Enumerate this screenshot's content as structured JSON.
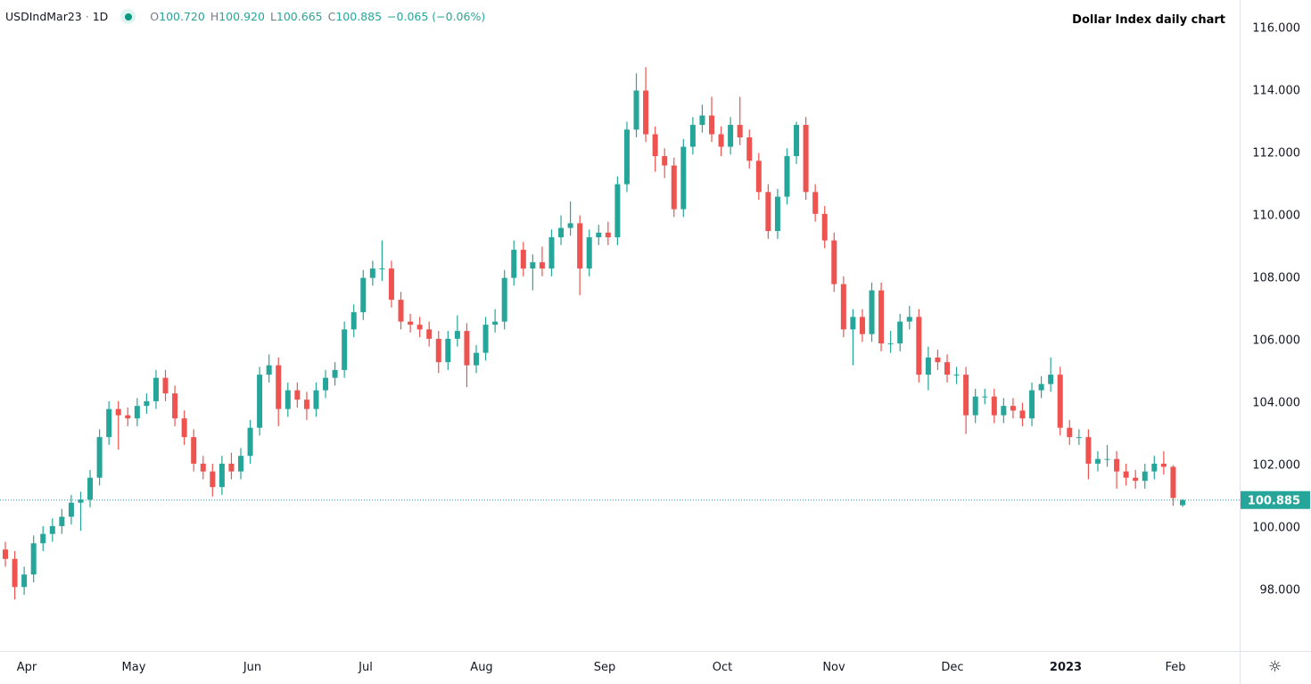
{
  "header": {
    "symbol": "USDIndMar23",
    "separator": "·",
    "interval": "1D",
    "open_label": "O",
    "open": "100.720",
    "high_label": "H",
    "high": "100.920",
    "low_label": "L",
    "low": "100.665",
    "close_label": "C",
    "close": "100.885",
    "change": "−0.065 (−0.06%)"
  },
  "annotation": "Dollar Index daily chart",
  "settings_icon": "gear-icon",
  "colors": {
    "up": "#26a69a",
    "down": "#ef5350",
    "price_line": "#26a69a",
    "axis_border": "#e0e3eb"
  },
  "chart_data": {
    "type": "candlestick",
    "title": "",
    "ylim": [
      96.05,
      116.9
    ],
    "y_ticks": [
      "98.000",
      "100.000",
      "102.000",
      "104.000",
      "106.000",
      "108.000",
      "110.000",
      "112.000",
      "114.000",
      "116.000"
    ],
    "x_ticks": [
      {
        "label": "Apr",
        "bold": false
      },
      {
        "label": "May",
        "bold": false
      },
      {
        "label": "Jun",
        "bold": false
      },
      {
        "label": "Jul",
        "bold": false
      },
      {
        "label": "Aug",
        "bold": false
      },
      {
        "label": "Sep",
        "bold": false
      },
      {
        "label": "Oct",
        "bold": false
      },
      {
        "label": "Nov",
        "bold": false
      },
      {
        "label": "Dec",
        "bold": false
      },
      {
        "label": "2023",
        "bold": true
      },
      {
        "label": "Feb",
        "bold": false
      }
    ],
    "grid": false,
    "last_price": 100.885,
    "last_price_label": "100.885",
    "columns": [
      "open",
      "high",
      "low",
      "close"
    ],
    "candles": [
      [
        99.3,
        99.55,
        98.75,
        99.0
      ],
      [
        99.0,
        99.25,
        97.7,
        98.1
      ],
      [
        98.1,
        98.75,
        97.85,
        98.5
      ],
      [
        98.5,
        99.75,
        98.25,
        99.5
      ],
      [
        99.5,
        100.05,
        99.25,
        99.8
      ],
      [
        99.8,
        100.3,
        99.55,
        100.05
      ],
      [
        100.05,
        100.6,
        99.8,
        100.35
      ],
      [
        100.35,
        101.05,
        100.1,
        100.8
      ],
      [
        100.8,
        101.15,
        99.9,
        100.9
      ],
      [
        100.9,
        101.85,
        100.65,
        101.6
      ],
      [
        101.6,
        103.15,
        101.35,
        102.9
      ],
      [
        102.9,
        104.05,
        102.65,
        103.8
      ],
      [
        103.8,
        104.05,
        102.5,
        103.6
      ],
      [
        103.6,
        103.85,
        103.25,
        103.5
      ],
      [
        103.5,
        104.15,
        103.25,
        103.9
      ],
      [
        103.9,
        104.3,
        103.65,
        104.05
      ],
      [
        104.05,
        105.05,
        103.8,
        104.8
      ],
      [
        104.8,
        105.05,
        104.05,
        104.3
      ],
      [
        104.3,
        104.55,
        103.25,
        103.5
      ],
      [
        103.5,
        103.75,
        102.65,
        102.9
      ],
      [
        102.9,
        103.15,
        101.8,
        102.05
      ],
      [
        102.05,
        102.3,
        101.55,
        101.8
      ],
      [
        101.8,
        102.05,
        101.0,
        101.3
      ],
      [
        101.3,
        102.3,
        101.05,
        102.05
      ],
      [
        102.05,
        102.4,
        101.55,
        101.8
      ],
      [
        101.8,
        102.55,
        101.55,
        102.3
      ],
      [
        102.3,
        103.45,
        102.05,
        103.2
      ],
      [
        103.2,
        105.15,
        102.95,
        104.9
      ],
      [
        104.9,
        105.55,
        104.65,
        105.2
      ],
      [
        105.2,
        105.45,
        103.25,
        103.8
      ],
      [
        103.8,
        104.65,
        103.55,
        104.4
      ],
      [
        104.4,
        104.65,
        103.85,
        104.1
      ],
      [
        104.1,
        104.35,
        103.45,
        103.8
      ],
      [
        103.8,
        104.65,
        103.55,
        104.4
      ],
      [
        104.4,
        105.05,
        104.15,
        104.8
      ],
      [
        104.8,
        105.3,
        104.55,
        105.05
      ],
      [
        105.05,
        106.6,
        104.8,
        106.35
      ],
      [
        106.35,
        107.15,
        106.1,
        106.9
      ],
      [
        106.9,
        108.25,
        106.65,
        108.0
      ],
      [
        108.0,
        108.55,
        107.75,
        108.3
      ],
      [
        108.3,
        109.2,
        107.9,
        108.3
      ],
      [
        108.3,
        108.55,
        107.05,
        107.3
      ],
      [
        107.3,
        107.55,
        106.35,
        106.6
      ],
      [
        106.6,
        106.85,
        106.25,
        106.5
      ],
      [
        106.5,
        106.75,
        106.1,
        106.35
      ],
      [
        106.35,
        106.6,
        105.8,
        106.05
      ],
      [
        106.05,
        106.3,
        104.95,
        105.3
      ],
      [
        105.3,
        106.3,
        105.05,
        106.05
      ],
      [
        106.05,
        106.8,
        105.8,
        106.3
      ],
      [
        106.3,
        106.55,
        104.5,
        105.2
      ],
      [
        105.2,
        105.85,
        104.95,
        105.6
      ],
      [
        105.6,
        106.75,
        105.35,
        106.5
      ],
      [
        106.5,
        107.0,
        106.25,
        106.6
      ],
      [
        106.6,
        108.25,
        106.35,
        108.0
      ],
      [
        108.0,
        109.2,
        107.75,
        108.9
      ],
      [
        108.9,
        109.15,
        108.05,
        108.3
      ],
      [
        108.3,
        108.75,
        107.6,
        108.5
      ],
      [
        108.5,
        109.0,
        108.05,
        108.3
      ],
      [
        108.3,
        109.55,
        108.05,
        109.3
      ],
      [
        109.3,
        110.0,
        109.05,
        109.6
      ],
      [
        109.6,
        110.45,
        109.35,
        109.75
      ],
      [
        109.75,
        110.0,
        107.45,
        108.3
      ],
      [
        108.3,
        109.55,
        108.05,
        109.3
      ],
      [
        109.3,
        109.7,
        109.05,
        109.45
      ],
      [
        109.45,
        109.8,
        109.05,
        109.3
      ],
      [
        109.3,
        111.25,
        109.05,
        111.0
      ],
      [
        111.0,
        113.0,
        110.75,
        112.75
      ],
      [
        112.75,
        114.55,
        112.5,
        114.0
      ],
      [
        114.0,
        114.75,
        112.35,
        112.6
      ],
      [
        112.6,
        112.85,
        111.4,
        111.9
      ],
      [
        111.9,
        112.15,
        111.2,
        111.6
      ],
      [
        111.6,
        111.85,
        109.95,
        110.2
      ],
      [
        110.2,
        112.45,
        109.95,
        112.2
      ],
      [
        112.2,
        113.15,
        111.95,
        112.9
      ],
      [
        112.9,
        113.55,
        112.65,
        113.2
      ],
      [
        113.2,
        113.8,
        112.35,
        112.6
      ],
      [
        112.6,
        112.85,
        111.9,
        112.2
      ],
      [
        112.2,
        113.15,
        111.95,
        112.9
      ],
      [
        112.9,
        113.8,
        112.25,
        112.5
      ],
      [
        112.5,
        112.75,
        111.5,
        111.75
      ],
      [
        111.75,
        112.0,
        110.5,
        110.75
      ],
      [
        110.75,
        111.0,
        109.25,
        109.5
      ],
      [
        109.5,
        110.85,
        109.25,
        110.6
      ],
      [
        110.6,
        112.15,
        110.35,
        111.9
      ],
      [
        111.9,
        113.0,
        111.65,
        112.9
      ],
      [
        112.9,
        113.15,
        110.5,
        110.75
      ],
      [
        110.75,
        111.0,
        109.8,
        110.05
      ],
      [
        110.05,
        110.3,
        108.95,
        109.2
      ],
      [
        109.2,
        109.45,
        107.55,
        107.8
      ],
      [
        107.8,
        108.05,
        106.1,
        106.35
      ],
      [
        106.35,
        107.0,
        105.2,
        106.75
      ],
      [
        106.75,
        107.0,
        105.95,
        106.2
      ],
      [
        106.2,
        107.85,
        105.95,
        107.6
      ],
      [
        107.6,
        107.85,
        105.65,
        105.9
      ],
      [
        105.9,
        106.3,
        105.6,
        105.9
      ],
      [
        105.9,
        106.85,
        105.65,
        106.6
      ],
      [
        106.6,
        107.1,
        106.35,
        106.75
      ],
      [
        106.75,
        107.0,
        104.65,
        104.9
      ],
      [
        104.9,
        105.8,
        104.4,
        105.45
      ],
      [
        105.45,
        105.7,
        105.05,
        105.3
      ],
      [
        105.3,
        105.55,
        104.65,
        104.9
      ],
      [
        104.9,
        105.15,
        104.6,
        104.9
      ],
      [
        104.9,
        105.15,
        103.0,
        103.6
      ],
      [
        103.6,
        104.45,
        103.35,
        104.2
      ],
      [
        104.2,
        104.45,
        103.95,
        104.2
      ],
      [
        104.2,
        104.45,
        103.35,
        103.6
      ],
      [
        103.6,
        104.15,
        103.35,
        103.9
      ],
      [
        103.9,
        104.15,
        103.5,
        103.75
      ],
      [
        103.75,
        104.0,
        103.25,
        103.5
      ],
      [
        103.5,
        104.65,
        103.25,
        104.4
      ],
      [
        104.4,
        104.85,
        104.15,
        104.6
      ],
      [
        104.6,
        105.45,
        104.35,
        104.9
      ],
      [
        104.9,
        105.15,
        102.95,
        103.2
      ],
      [
        103.2,
        103.45,
        102.65,
        102.9
      ],
      [
        102.9,
        103.15,
        102.65,
        102.9
      ],
      [
        102.9,
        103.15,
        101.55,
        102.05
      ],
      [
        102.05,
        102.45,
        101.8,
        102.2
      ],
      [
        102.2,
        102.65,
        101.95,
        102.2
      ],
      [
        102.2,
        102.45,
        101.25,
        101.8
      ],
      [
        101.8,
        102.05,
        101.35,
        101.6
      ],
      [
        101.6,
        101.85,
        101.25,
        101.5
      ],
      [
        101.5,
        102.05,
        101.25,
        101.8
      ],
      [
        101.8,
        102.3,
        101.55,
        102.05
      ],
      [
        102.05,
        102.45,
        101.7,
        101.95
      ],
      [
        101.95,
        102.0,
        100.7,
        100.95
      ],
      [
        100.72,
        100.92,
        100.665,
        100.885
      ]
    ]
  }
}
